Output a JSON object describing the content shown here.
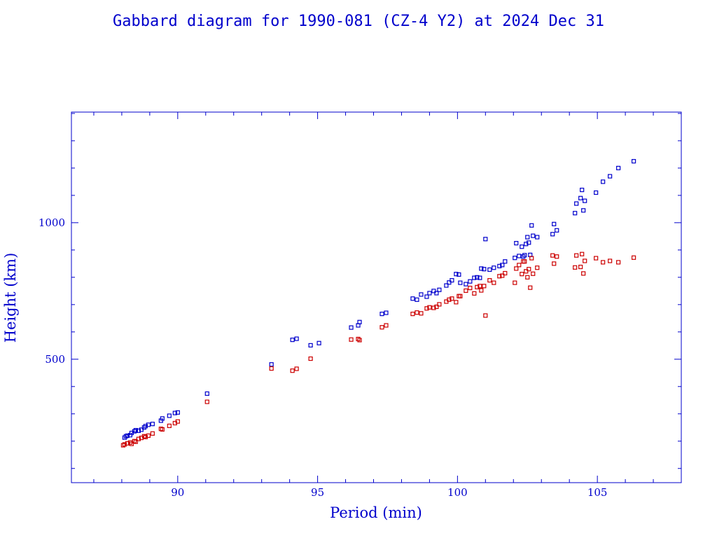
{
  "chart_data": {
    "type": "scatter",
    "title": "Gabbard diagram for 1990-081 (CZ-4 Y2) at 2024 Dec 31",
    "xlabel": "Period (min)",
    "ylabel": "Height (km)",
    "xlim": [
      86.2,
      108.0
    ],
    "ylim": [
      48,
      1405
    ],
    "x_ticks": [
      90,
      95,
      100,
      105
    ],
    "x_tick_labels": [
      "90",
      "95",
      "100",
      "105"
    ],
    "y_ticks": [
      500,
      1000
    ],
    "y_tick_labels": [
      "500",
      "1000"
    ],
    "grid": false,
    "legend": "none",
    "colors": {
      "axis": "#0000cc",
      "apogee": "#0000cc",
      "perigee": "#cc0000"
    },
    "series": [
      {
        "role": "apogee",
        "color": "#0000cc",
        "points": [
          [
            88.1,
            213
          ],
          [
            88.15,
            218
          ],
          [
            88.2,
            220
          ],
          [
            88.3,
            222
          ],
          [
            88.35,
            230
          ],
          [
            88.45,
            236
          ],
          [
            88.5,
            240
          ],
          [
            88.6,
            238
          ],
          [
            88.7,
            242
          ],
          [
            88.8,
            250
          ],
          [
            88.85,
            255
          ],
          [
            88.95,
            260
          ],
          [
            89.1,
            263
          ],
          [
            89.4,
            275
          ],
          [
            89.45,
            283
          ],
          [
            89.7,
            293
          ],
          [
            89.9,
            303
          ],
          [
            90.0,
            305
          ],
          [
            91.05,
            374
          ],
          [
            93.35,
            481
          ],
          [
            94.1,
            571
          ],
          [
            94.25,
            575
          ],
          [
            94.75,
            551
          ],
          [
            95.05,
            559
          ],
          [
            96.2,
            616
          ],
          [
            96.45,
            624
          ],
          [
            96.5,
            636
          ],
          [
            97.3,
            666
          ],
          [
            97.45,
            670
          ],
          [
            98.4,
            722
          ],
          [
            98.55,
            718
          ],
          [
            98.7,
            737
          ],
          [
            98.9,
            729
          ],
          [
            99.0,
            742
          ],
          [
            99.15,
            750
          ],
          [
            99.25,
            742
          ],
          [
            99.35,
            754
          ],
          [
            99.6,
            770
          ],
          [
            99.7,
            781
          ],
          [
            99.8,
            789
          ],
          [
            99.95,
            812
          ],
          [
            100.05,
            810
          ],
          [
            100.1,
            780
          ],
          [
            100.3,
            775
          ],
          [
            100.45,
            785
          ],
          [
            100.6,
            798
          ],
          [
            100.7,
            800
          ],
          [
            100.8,
            798
          ],
          [
            100.85,
            832
          ],
          [
            100.95,
            830
          ],
          [
            101.0,
            940
          ],
          [
            101.15,
            828
          ],
          [
            101.3,
            835
          ],
          [
            101.5,
            841
          ],
          [
            101.6,
            845
          ],
          [
            101.7,
            858
          ],
          [
            102.05,
            871
          ],
          [
            102.1,
            925
          ],
          [
            102.2,
            878
          ],
          [
            102.3,
            912
          ],
          [
            102.35,
            876
          ],
          [
            102.4,
            881
          ],
          [
            102.45,
            922
          ],
          [
            102.5,
            947
          ],
          [
            102.55,
            927
          ],
          [
            102.6,
            882
          ],
          [
            102.65,
            990
          ],
          [
            102.7,
            952
          ],
          [
            102.85,
            947
          ],
          [
            103.4,
            958
          ],
          [
            103.45,
            995
          ],
          [
            103.55,
            972
          ],
          [
            104.2,
            1035
          ],
          [
            104.25,
            1070
          ],
          [
            104.4,
            1090
          ],
          [
            104.5,
            1045
          ],
          [
            104.45,
            1120
          ],
          [
            104.55,
            1080
          ],
          [
            104.95,
            1110
          ],
          [
            105.2,
            1150
          ],
          [
            105.45,
            1170
          ],
          [
            105.75,
            1200
          ],
          [
            106.3,
            1225
          ]
        ]
      },
      {
        "role": "perigee",
        "color": "#cc0000",
        "points": [
          [
            88.05,
            185
          ],
          [
            88.1,
            188
          ],
          [
            88.2,
            192
          ],
          [
            88.3,
            195
          ],
          [
            88.35,
            190
          ],
          [
            88.45,
            200
          ],
          [
            88.5,
            198
          ],
          [
            88.6,
            208
          ],
          [
            88.7,
            212
          ],
          [
            88.8,
            218
          ],
          [
            88.85,
            215
          ],
          [
            88.95,
            220
          ],
          [
            89.1,
            228
          ],
          [
            89.4,
            245
          ],
          [
            89.45,
            243
          ],
          [
            89.7,
            256
          ],
          [
            89.9,
            266
          ],
          [
            90.0,
            272
          ],
          [
            91.05,
            344
          ],
          [
            93.35,
            466
          ],
          [
            94.1,
            458
          ],
          [
            94.25,
            465
          ],
          [
            94.75,
            502
          ],
          [
            96.2,
            572
          ],
          [
            96.45,
            574
          ],
          [
            96.5,
            570
          ],
          [
            97.3,
            617
          ],
          [
            97.45,
            624
          ],
          [
            98.4,
            666
          ],
          [
            98.55,
            671
          ],
          [
            98.7,
            668
          ],
          [
            98.9,
            686
          ],
          [
            99.0,
            690
          ],
          [
            99.15,
            688
          ],
          [
            99.25,
            692
          ],
          [
            99.35,
            701
          ],
          [
            99.6,
            711
          ],
          [
            99.7,
            718
          ],
          [
            99.8,
            722
          ],
          [
            99.95,
            709
          ],
          [
            100.05,
            731
          ],
          [
            100.1,
            731
          ],
          [
            100.3,
            751
          ],
          [
            100.45,
            761
          ],
          [
            100.6,
            741
          ],
          [
            100.7,
            764
          ],
          [
            100.8,
            768
          ],
          [
            100.85,
            752
          ],
          [
            100.95,
            768
          ],
          [
            101.0,
            660
          ],
          [
            101.15,
            789
          ],
          [
            101.3,
            780
          ],
          [
            101.5,
            804
          ],
          [
            101.6,
            806
          ],
          [
            101.7,
            815
          ],
          [
            102.05,
            780
          ],
          [
            102.1,
            832
          ],
          [
            102.2,
            845
          ],
          [
            102.3,
            812
          ],
          [
            102.35,
            858
          ],
          [
            102.4,
            858
          ],
          [
            102.45,
            822
          ],
          [
            102.5,
            800
          ],
          [
            102.55,
            830
          ],
          [
            102.6,
            762
          ],
          [
            102.65,
            870
          ],
          [
            102.7,
            813
          ],
          [
            102.85,
            835
          ],
          [
            103.4,
            880
          ],
          [
            103.45,
            850
          ],
          [
            103.55,
            876
          ],
          [
            104.2,
            836
          ],
          [
            104.25,
            880
          ],
          [
            104.4,
            838
          ],
          [
            104.5,
            814
          ],
          [
            104.45,
            885
          ],
          [
            104.55,
            860
          ],
          [
            104.95,
            870
          ],
          [
            105.2,
            855
          ],
          [
            105.45,
            860
          ],
          [
            105.75,
            855
          ],
          [
            106.3,
            872
          ]
        ]
      }
    ]
  }
}
